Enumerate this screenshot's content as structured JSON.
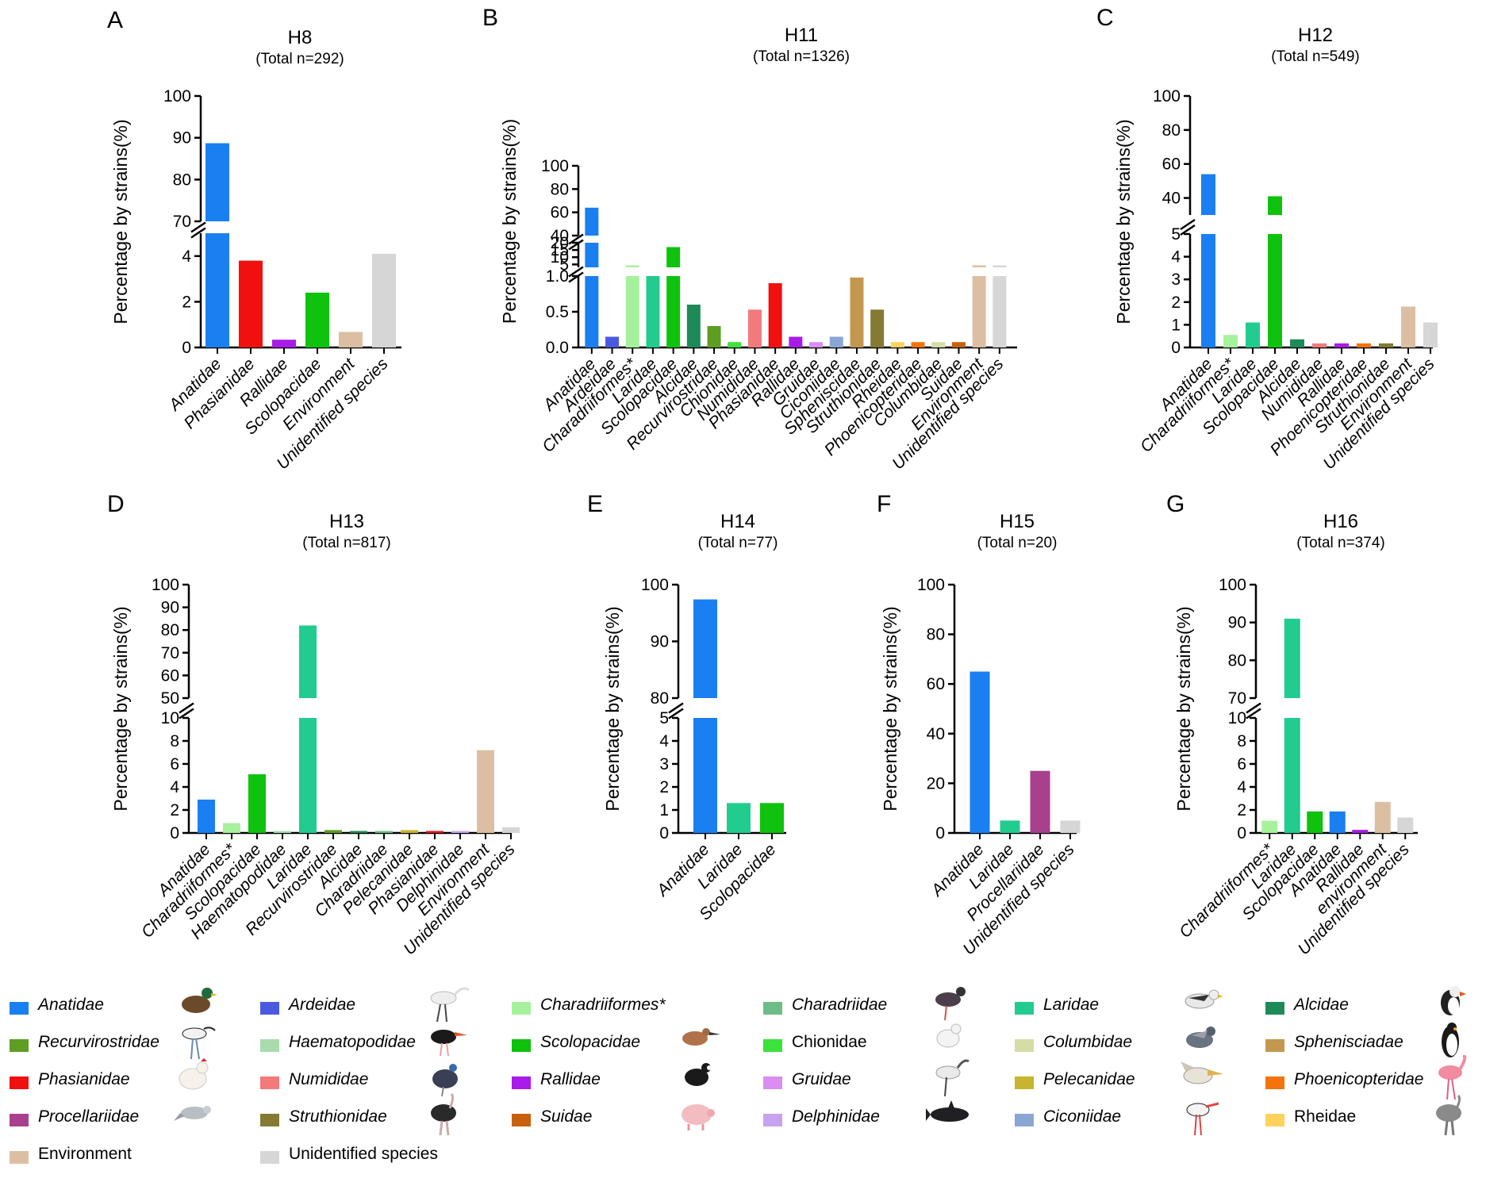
{
  "y_axis_label": "Percentage by strains(%)",
  "colors": {
    "Anatidae": "#1a7ff0",
    "Ardeidae": "#4a5ae0",
    "Charadriiformes*": "#a6f29c",
    "Charadriidae": "#6dbd86",
    "Laridae": "#22cc8e",
    "Alcidae": "#1e8a58",
    "Recurvirostridae": "#5e9e24",
    "Haematopodidae": "#a8dcae",
    "Scolopacidae": "#0ec20e",
    "Chionidae": "#3be23b",
    "Columbidae": "#d6dca6",
    "Sphenisciadae": "#c49750",
    "Phasianidae": "#f01010",
    "Numididae": "#f27a7a",
    "Rallidae": "#a91be8",
    "Gruidae": "#d98ef0",
    "Pelecanidae": "#c8b42e",
    "Phoenicopteridae": "#f5730a",
    "Procellariidae": "#a8408e",
    "Struthionidae": "#857a34",
    "Suidae": "#c8600e",
    "Delphinidae": "#c7a2ef",
    "Ciconiidae": "#8aa6d4",
    "Rheidae": "#ffd25e",
    "Environment": "#dcbfa3",
    "Unidentified species": "#d6d6d6"
  },
  "chart_data": [
    {
      "panel": "A",
      "type": "bar",
      "title": "H8",
      "subtitle": "(Total n=292)",
      "ylabel": "Percentage by strains(%)",
      "y_segments": [
        {
          "range": [
            0,
            5
          ],
          "ticks": [
            0,
            2,
            4
          ]
        },
        {
          "range": [
            70,
            100
          ],
          "ticks": [
            70,
            80,
            90,
            100
          ]
        }
      ],
      "categories": [
        "Anatidae",
        "Phasianidae",
        "Rallidae",
        "Scolopacidae",
        "Environment",
        "Unidentified species"
      ],
      "values": [
        88.7,
        3.8,
        0.34,
        2.4,
        0.68,
        4.1
      ]
    },
    {
      "panel": "B",
      "type": "bar",
      "title": "H11",
      "subtitle": "(Total n=1326)",
      "ylabel": "Percentage by strains(%)",
      "y_segments": [
        {
          "range": [
            0,
            1
          ],
          "ticks": [
            0.0,
            0.5,
            1.0
          ]
        },
        {
          "range": [
            3,
            20
          ],
          "ticks": [
            5,
            10,
            15,
            20
          ]
        },
        {
          "range": [
            40,
            100
          ],
          "ticks": [
            40,
            60,
            80,
            100
          ]
        }
      ],
      "categories": [
        "Anatidae",
        "Ardeidae",
        "Charadriiformes*",
        "Laridae",
        "Scolopacidae",
        "Alcidae",
        "Recurvirostridae",
        "Chionidae",
        "Numididae",
        "Phasianidae",
        "Rallidae",
        "Gruidae",
        "Ciconiidae",
        "Spheniscidae",
        "Struthionidae",
        "Rheidae",
        "Phoenicopteridae",
        "Columbidae",
        "Suidae",
        "Environment",
        "Unidentified species"
      ],
      "values": [
        64,
        0.15,
        3.6,
        1.0,
        17,
        0.6,
        0.3,
        0.075,
        0.53,
        0.9,
        0.15,
        0.075,
        0.15,
        0.98,
        0.53,
        0.075,
        0.075,
        0.075,
        0.075,
        3.8,
        3.7
      ]
    },
    {
      "panel": "C",
      "type": "bar",
      "title": "H12",
      "subtitle": "(Total n=549)",
      "ylabel": "Percentage by strains(%)",
      "y_segments": [
        {
          "range": [
            0,
            5
          ],
          "ticks": [
            0,
            1,
            2,
            3,
            4,
            5
          ]
        },
        {
          "range": [
            30,
            100
          ],
          "ticks": [
            40,
            60,
            80,
            100
          ]
        }
      ],
      "categories": [
        "Anatidae",
        "Charadriiformes*",
        "Laridae",
        "Scolopacidae",
        "Alcidae",
        "Numididae",
        "Rallidae",
        "Phoenicopteridae",
        "Struthionidae",
        "Environment",
        "Unidentified species"
      ],
      "values": [
        54,
        0.55,
        1.1,
        41,
        0.36,
        0.18,
        0.18,
        0.18,
        0.18,
        1.8,
        1.1
      ]
    },
    {
      "panel": "D",
      "type": "bar",
      "title": "H13",
      "subtitle": "(Total n=817)",
      "ylabel": "Percentage by strains(%)",
      "y_segments": [
        {
          "range": [
            0,
            10
          ],
          "ticks": [
            0,
            2,
            4,
            6,
            8,
            10
          ]
        },
        {
          "range": [
            50,
            100
          ],
          "ticks": [
            50,
            60,
            70,
            80,
            90,
            100
          ]
        }
      ],
      "categories": [
        "Anatidae",
        "Charadriiformes*",
        "Scolopacidae",
        "Haematopodidae",
        "Laridae",
        "Recurvirostridae",
        "Alcidae",
        "Charadriidae",
        "Pelecanidae",
        "Phasianidae",
        "Delphinidae",
        "Environment",
        "Unidentified species"
      ],
      "values": [
        2.9,
        0.85,
        5.1,
        0.12,
        82,
        0.25,
        0.12,
        0.12,
        0.25,
        0.12,
        0.12,
        7.2,
        0.5
      ]
    },
    {
      "panel": "E",
      "type": "bar",
      "title": "H14",
      "subtitle": "(Total n=77)",
      "ylabel": "Percentage by strains(%)",
      "y_segments": [
        {
          "range": [
            0,
            5
          ],
          "ticks": [
            0,
            1,
            2,
            3,
            4,
            5
          ]
        },
        {
          "range": [
            80,
            100
          ],
          "ticks": [
            80,
            90,
            100
          ]
        }
      ],
      "categories": [
        "Anatidae",
        "Laridae",
        "Scolopacidae"
      ],
      "values": [
        97.4,
        1.3,
        1.3
      ]
    },
    {
      "panel": "F",
      "type": "bar",
      "title": "H15",
      "subtitle": "(Total n=20)",
      "ylabel": "Percentage by strains(%)",
      "y_segments": [
        {
          "range": [
            0,
            100
          ],
          "ticks": [
            0,
            20,
            40,
            60,
            80,
            100
          ]
        }
      ],
      "categories": [
        "Anatidae",
        "Laridae",
        "Procellariidae",
        "Unidentified species"
      ],
      "values": [
        65,
        5,
        25,
        5
      ]
    },
    {
      "panel": "G",
      "type": "bar",
      "title": "H16",
      "subtitle": "(Total n=374)",
      "ylabel": "Percentage by strains(%)",
      "y_segments": [
        {
          "range": [
            0,
            10
          ],
          "ticks": [
            0,
            2,
            4,
            6,
            8,
            10
          ]
        },
        {
          "range": [
            70,
            100
          ],
          "ticks": [
            70,
            80,
            90,
            100
          ]
        }
      ],
      "categories": [
        "Charadriiformes*",
        "Laridae",
        "Scolopacidae",
        "Anatidae",
        "Rallidae",
        "environment",
        "Unidentified species"
      ],
      "values": [
        1.07,
        91,
        1.87,
        1.87,
        0.27,
        2.7,
        1.34
      ]
    }
  ],
  "legend": [
    {
      "label": "Anatidae",
      "italic": true,
      "icon": "duck-icon"
    },
    {
      "label": "Ardeidae",
      "italic": true,
      "icon": "egret-icon"
    },
    {
      "label": "Charadriiformes*",
      "italic": true,
      "icon": ""
    },
    {
      "label": "Charadriidae",
      "italic": true,
      "icon": "lapwing-icon"
    },
    {
      "label": "Laridae",
      "italic": true,
      "icon": "gull-icon"
    },
    {
      "label": "Alcidae",
      "italic": true,
      "icon": "puffin-icon"
    },
    {
      "label": "Recurvirostridae",
      "italic": true,
      "icon": "avocet-icon"
    },
    {
      "label": "Haematopodidae",
      "italic": true,
      "icon": "oystercatcher-icon"
    },
    {
      "label": "Scolopacidae",
      "italic": true,
      "icon": "sandpiper-icon"
    },
    {
      "label": "Chionidae",
      "italic": false,
      "icon": "sheathbill-icon"
    },
    {
      "label": "Columbidae",
      "italic": true,
      "icon": "pigeon-icon"
    },
    {
      "label": "Sphenisciadae",
      "italic": true,
      "icon": "penguin-icon"
    },
    {
      "label": "Phasianidae",
      "italic": true,
      "icon": "chicken-icon"
    },
    {
      "label": "Numididae",
      "italic": true,
      "icon": "guineafowl-icon"
    },
    {
      "label": "Rallidae",
      "italic": true,
      "icon": "coot-icon"
    },
    {
      "label": "Gruidae",
      "italic": true,
      "icon": "crane-icon"
    },
    {
      "label": "Pelecanidae",
      "italic": true,
      "icon": "pelican-icon"
    },
    {
      "label": "Phoenicopteridae",
      "italic": true,
      "icon": "flamingo-icon"
    },
    {
      "label": "Procellariidae",
      "italic": true,
      "icon": "petrel-icon"
    },
    {
      "label": "Struthionidae",
      "italic": true,
      "icon": "ostrich-icon"
    },
    {
      "label": "Suidae",
      "italic": true,
      "icon": "pig-icon"
    },
    {
      "label": "Delphinidae",
      "italic": true,
      "icon": "dolphin-icon"
    },
    {
      "label": "Ciconiidae",
      "italic": true,
      "icon": "stork-icon"
    },
    {
      "label": "Rheidae",
      "italic": false,
      "icon": "rhea-icon"
    },
    {
      "label": "Environment",
      "italic": false,
      "icon": ""
    },
    {
      "label": "Unidentified species",
      "italic": false,
      "icon": ""
    }
  ]
}
